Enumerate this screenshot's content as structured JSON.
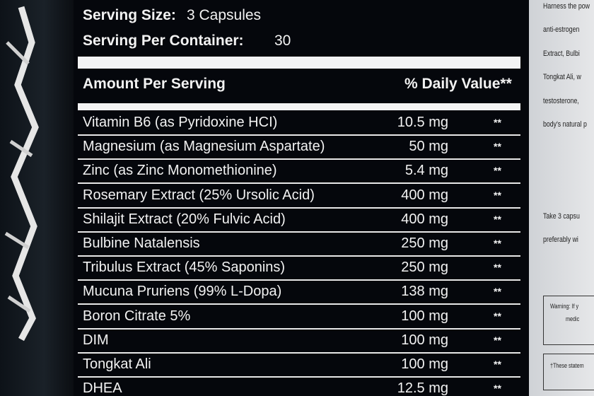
{
  "panel": {
    "serving_size": {
      "label": "Serving Size:",
      "value": "3 Capsules"
    },
    "servings_per_container": {
      "label": "Serving Per Container:",
      "value": "30"
    },
    "header": {
      "amount": "Amount Per Serving",
      "daily_value": "% Daily Value**"
    },
    "rows": [
      [
        "Vitamin B6 (as Pyridoxine HCI)",
        "10.5 mg",
        "**"
      ],
      [
        "Magnesium (as Magnesium Aspartate)",
        "50 mg",
        "**"
      ],
      [
        "Zinc (as Zinc Monomethionine)",
        "5.4 mg",
        "**"
      ],
      [
        "Rosemary Extract (25% Ursolic Acid)",
        "400 mg",
        "**"
      ],
      [
        "Shilajit Extract (20% Fulvic Acid)",
        "400 mg",
        "**"
      ],
      [
        "Bulbine Natalensis",
        "250 mg",
        "**"
      ],
      [
        "Tribulus Extract (45% Saponins)",
        "250 mg",
        "**"
      ],
      [
        "Mucuna Pruriens (99% L-Dopa)",
        "138 mg",
        "**"
      ],
      [
        "Boron Citrate 5%",
        "100 mg",
        "**"
      ],
      [
        "DIM",
        "100 mg",
        "**"
      ],
      [
        "Tongkat Ali",
        "100 mg",
        "**"
      ],
      [
        "DHEA",
        "12.5 mg",
        "**"
      ]
    ]
  },
  "side_text": {
    "lines": [
      "Harness the pow",
      "anti-estrogen",
      "Extract, Bulbi",
      "Tongkat Ali, w",
      "testosterone,",
      "body's natural p",
      "Take 3 capsu",
      "preferably wi"
    ],
    "warning": [
      "Warning: If y",
      "medic"
    ],
    "footnote": "†These statem"
  }
}
